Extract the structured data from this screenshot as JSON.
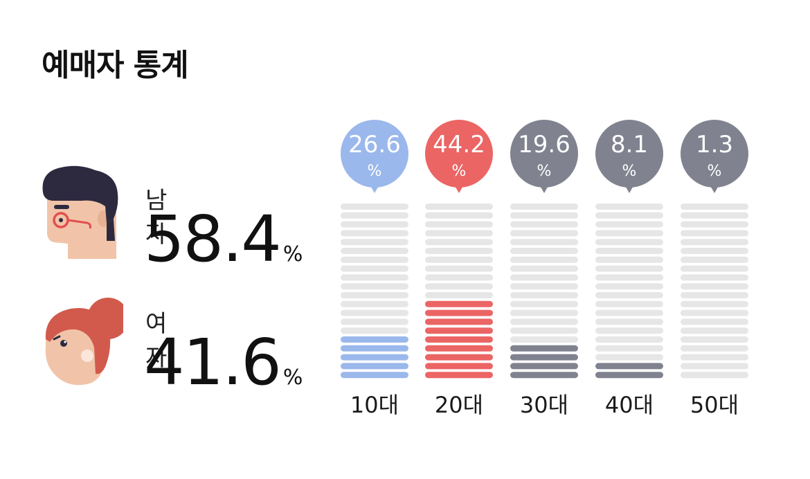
{
  "title": "예매자 통계",
  "gender": {
    "male": {
      "label": "남자",
      "value": "58.4",
      "unit": "%"
    },
    "female": {
      "label": "여자",
      "value": "41.6",
      "unit": "%"
    }
  },
  "colors": {
    "bar_10s": "#9bb8ec",
    "bar_20s": "#eb6564",
    "bar_other": "#80828f",
    "track": "#e6e6e6",
    "text": "#111111"
  },
  "chart_data": {
    "type": "bar",
    "categories": [
      "10대",
      "20대",
      "30대",
      "40대",
      "50대"
    ],
    "values": [
      26.6,
      44.2,
      19.6,
      8.1,
      1.3
    ],
    "value_labels": [
      "26.6",
      "44.2",
      "19.6",
      "8.1",
      "1.3"
    ],
    "unit": "%",
    "ylim": [
      0,
      100
    ],
    "grid": false
  }
}
